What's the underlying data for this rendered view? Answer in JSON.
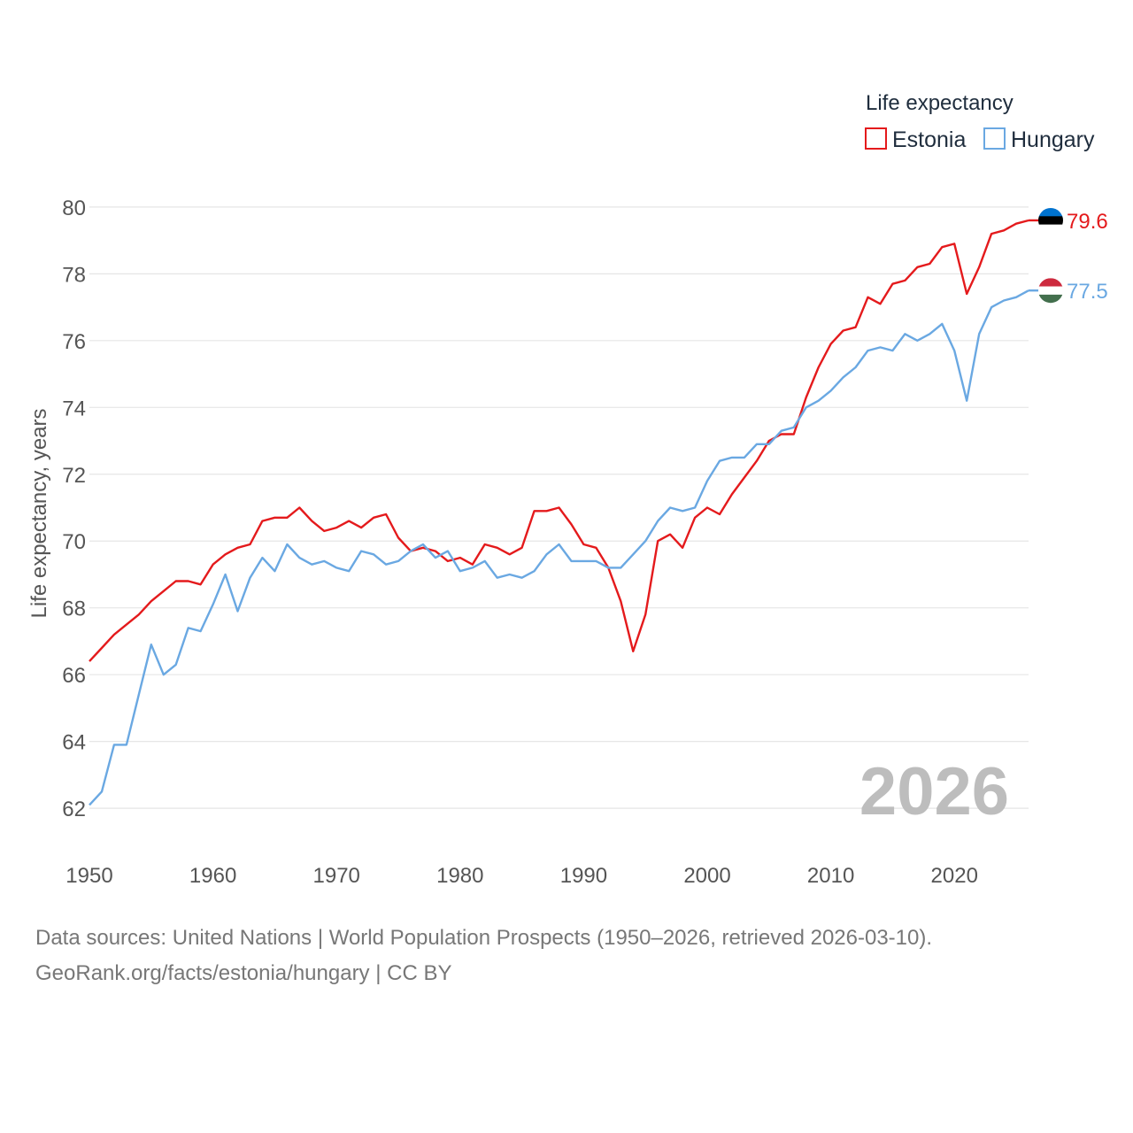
{
  "chart_data": {
    "type": "line",
    "legend_title": "Life expectancy",
    "ylabel": "Life expectancy, years",
    "year_label": "2026",
    "ylim": [
      61.5,
      80.5
    ],
    "xlim": [
      1950,
      2026
    ],
    "y_ticks": [
      62,
      64,
      66,
      68,
      70,
      72,
      74,
      76,
      78,
      80
    ],
    "x_ticks": [
      1950,
      1960,
      1970,
      1980,
      1990,
      2000,
      2010,
      2020
    ],
    "x": [
      1950,
      1951,
      1952,
      1953,
      1954,
      1955,
      1956,
      1957,
      1958,
      1959,
      1960,
      1961,
      1962,
      1963,
      1964,
      1965,
      1966,
      1967,
      1968,
      1969,
      1970,
      1971,
      1972,
      1973,
      1974,
      1975,
      1976,
      1977,
      1978,
      1979,
      1980,
      1981,
      1982,
      1983,
      1984,
      1985,
      1986,
      1987,
      1988,
      1989,
      1990,
      1991,
      1992,
      1993,
      1994,
      1995,
      1996,
      1997,
      1998,
      1999,
      2000,
      2001,
      2002,
      2003,
      2004,
      2005,
      2006,
      2007,
      2008,
      2009,
      2010,
      2011,
      2012,
      2013,
      2014,
      2015,
      2016,
      2017,
      2018,
      2019,
      2020,
      2021,
      2022,
      2023,
      2024,
      2025,
      2026
    ],
    "series": [
      {
        "name": "Estonia",
        "color": "#e41a1c",
        "end_label": "79.6",
        "flag_colors": [
          "#0072ce",
          "#000000",
          "#ffffff"
        ],
        "values": [
          66.4,
          66.8,
          67.2,
          67.5,
          67.8,
          68.2,
          68.5,
          68.8,
          68.8,
          68.7,
          69.3,
          69.6,
          69.8,
          69.9,
          70.6,
          70.7,
          70.7,
          71.0,
          70.6,
          70.3,
          70.4,
          70.6,
          70.4,
          70.7,
          70.8,
          70.1,
          69.7,
          69.8,
          69.7,
          69.4,
          69.5,
          69.3,
          69.9,
          69.8,
          69.6,
          69.8,
          70.9,
          70.9,
          71.0,
          70.5,
          69.9,
          69.8,
          69.2,
          68.2,
          66.7,
          67.8,
          70.0,
          70.2,
          69.8,
          70.7,
          71.0,
          70.8,
          71.4,
          71.9,
          72.4,
          73.0,
          73.2,
          73.2,
          74.3,
          75.2,
          75.9,
          76.3,
          76.4,
          77.3,
          77.1,
          77.7,
          77.8,
          78.2,
          78.3,
          78.8,
          78.9,
          77.4,
          78.2,
          79.2,
          79.3,
          79.5,
          79.6
        ]
      },
      {
        "name": "Hungary",
        "color": "#6aa8e2",
        "end_label": "77.5",
        "flag_colors": [
          "#cd2a3e",
          "#ffffff",
          "#436f4d"
        ],
        "values": [
          62.1,
          62.5,
          63.9,
          63.9,
          65.4,
          66.9,
          66.0,
          66.3,
          67.4,
          67.3,
          68.1,
          69.0,
          67.9,
          68.9,
          69.5,
          69.1,
          69.9,
          69.5,
          69.3,
          69.4,
          69.2,
          69.1,
          69.7,
          69.6,
          69.3,
          69.4,
          69.7,
          69.9,
          69.5,
          69.7,
          69.1,
          69.2,
          69.4,
          68.9,
          69.0,
          68.9,
          69.1,
          69.6,
          69.9,
          69.4,
          69.4,
          69.4,
          69.2,
          69.2,
          69.6,
          70.0,
          70.6,
          71.0,
          70.9,
          71.0,
          71.8,
          72.4,
          72.5,
          72.5,
          72.9,
          72.9,
          73.3,
          73.4,
          74.0,
          74.2,
          74.5,
          74.9,
          75.2,
          75.7,
          75.8,
          75.7,
          76.2,
          76.0,
          76.2,
          76.5,
          75.7,
          74.2,
          76.2,
          77.0,
          77.2,
          77.3,
          77.5
        ]
      }
    ]
  },
  "footer": {
    "line1": "Data sources: United Nations | World Population Prospects (1950–2026, retrieved 2026-03-10).",
    "line2": "GeoRank.org/facts/estonia/hungary | CC BY"
  }
}
